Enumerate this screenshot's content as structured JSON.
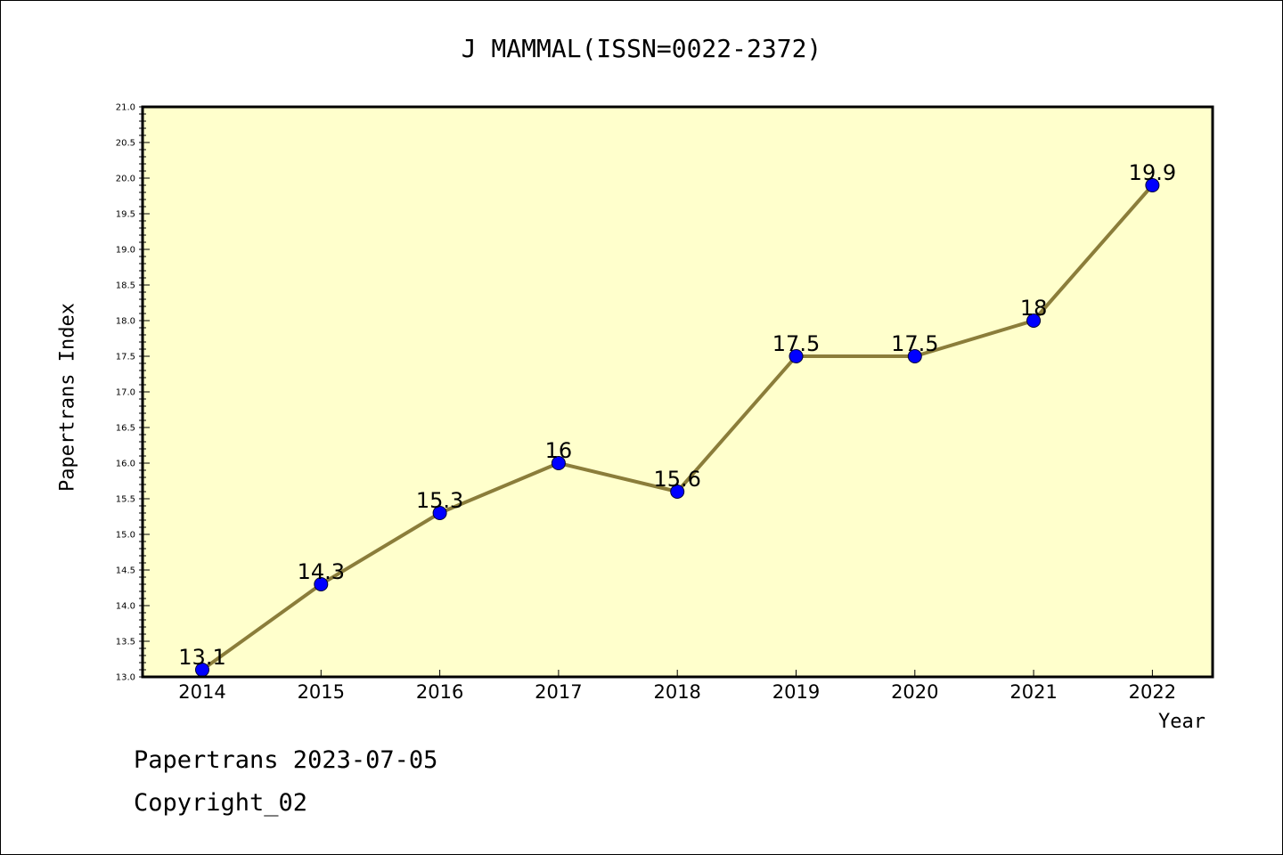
{
  "chart_data": {
    "type": "line",
    "title": "J MAMMAL(ISSN=0022-2372)",
    "xlabel": "Year",
    "ylabel": "Papertrans Index",
    "categories": [
      "2014",
      "2015",
      "2016",
      "2017",
      "2018",
      "2019",
      "2020",
      "2021",
      "2022"
    ],
    "series": [
      {
        "values": [
          13.1,
          14.3,
          15.3,
          16,
          15.6,
          17.5,
          17.5,
          18,
          19.9
        ]
      }
    ],
    "data_labels": [
      "13.1",
      "14.3",
      "15.3",
      "16",
      "15.6",
      "17.5",
      "17.5",
      "18",
      "19.9"
    ],
    "ylim": [
      13.0,
      21.0
    ],
    "y_ticks": [
      "13.0",
      "13.5",
      "14.0",
      "14.5",
      "15.0",
      "15.5",
      "16.0",
      "16.5",
      "17.0",
      "17.5",
      "18.0",
      "18.5",
      "19.0",
      "19.5",
      "20.0",
      "20.5",
      "21.0"
    ],
    "grid": false,
    "colors": {
      "plot_background": "#ffffcc",
      "line": "#8b7d3a",
      "marker": "#0000ff"
    }
  },
  "footer": {
    "line1": "Papertrans 2023-07-05",
    "line2": "Copyright_02"
  }
}
